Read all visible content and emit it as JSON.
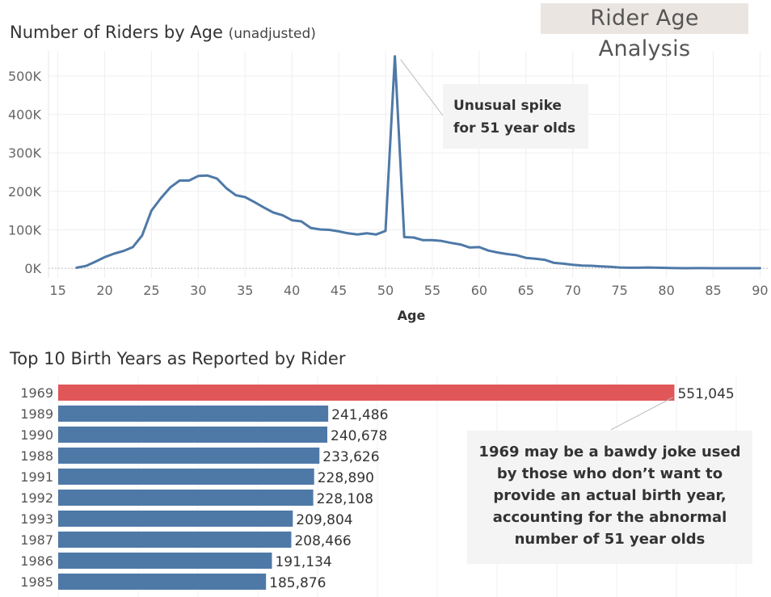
{
  "dashboard_title": "Rider Age Analysis",
  "chart_data": [
    {
      "type": "line",
      "title": "Number of Riders by Age",
      "subtitle": "(unadjusted)",
      "xlabel": "Age",
      "ylabel": "",
      "x": [
        17,
        18,
        19,
        20,
        21,
        22,
        23,
        24,
        25,
        26,
        27,
        28,
        29,
        30,
        31,
        32,
        33,
        34,
        35,
        36,
        37,
        38,
        39,
        40,
        41,
        42,
        43,
        44,
        45,
        46,
        47,
        48,
        49,
        50,
        51,
        52,
        53,
        54,
        55,
        56,
        57,
        58,
        59,
        60,
        61,
        62,
        63,
        64,
        65,
        66,
        67,
        68,
        69,
        70,
        71,
        72,
        73,
        74,
        75,
        76,
        77,
        78,
        79,
        80,
        81,
        82,
        83,
        84,
        85,
        86,
        87,
        88,
        89,
        90
      ],
      "y": [
        1500,
        6000,
        17000,
        29000,
        38000,
        45000,
        55000,
        85000,
        150000,
        182000,
        210000,
        228000,
        228000,
        240000,
        241000,
        233000,
        208000,
        190000,
        185000,
        172000,
        158000,
        145000,
        138000,
        125000,
        122000,
        105000,
        101000,
        100000,
        96000,
        91000,
        88000,
        91000,
        88000,
        97000,
        551000,
        81000,
        80000,
        73000,
        73000,
        71000,
        66000,
        62000,
        54000,
        55000,
        46000,
        41000,
        37000,
        34000,
        27000,
        25000,
        22000,
        14000,
        12000,
        9000,
        7000,
        6500,
        5000,
        4000,
        2000,
        1500,
        1500,
        2000,
        1500,
        1000,
        500,
        300,
        500,
        400,
        200,
        200,
        200,
        200,
        100,
        100
      ],
      "xticks": [
        "15",
        "20",
        "25",
        "30",
        "35",
        "40",
        "45",
        "50",
        "55",
        "60",
        "65",
        "70",
        "75",
        "80",
        "85",
        "90"
      ],
      "yticks": [
        "0K",
        "100K",
        "200K",
        "300K",
        "400K",
        "500K"
      ],
      "xlim": [
        14,
        91
      ],
      "ylim": [
        -25000,
        565000
      ],
      "grid": true,
      "color": "#4e79a7",
      "annotation": "Unusual spike for 51 year olds"
    },
    {
      "type": "bar",
      "orientation": "horizontal",
      "title": "Top 10 Birth Years as Reported by Rider",
      "categories": [
        "1969",
        "1989",
        "1990",
        "1988",
        "1991",
        "1992",
        "1993",
        "1987",
        "1986",
        "1985"
      ],
      "values": [
        551045,
        241486,
        240678,
        233626,
        228890,
        228108,
        209804,
        208466,
        191134,
        185876
      ],
      "labels": [
        "551,045",
        "241,486",
        "240,678",
        "233,626",
        "228,890",
        "228,108",
        "209,804",
        "208,466",
        "191,134",
        "185,876"
      ],
      "highlight_category": "1969",
      "xlim": [
        0,
        636000
      ],
      "colors": {
        "bar": "#4e79a7",
        "highlight": "#e15759"
      },
      "annotation": "1969 may be a bawdy joke used by those who don’t want to provide an actual birth year, accounting for the abnormal number of 51 year olds"
    }
  ]
}
